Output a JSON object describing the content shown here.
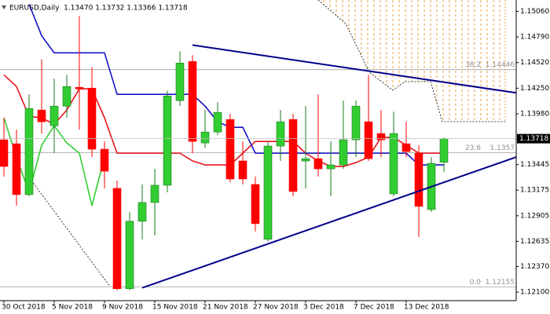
{
  "chart_data": {
    "type": "candlestick",
    "title": "EURUSD,Daily  1.13470 1.13732 1.13366 1.13718",
    "categories": [
      "30 Oct 2018",
      null,
      null,
      null,
      "5 Nov 2018",
      null,
      null,
      null,
      "9 Nov 2018",
      null,
      null,
      null,
      "15 Nov 2018",
      null,
      null,
      null,
      "21 Nov 2018",
      null,
      null,
      null,
      "27 Nov 2018",
      null,
      null,
      null,
      "3 Dec 2018",
      null,
      null,
      null,
      "7 Dec 2018",
      null,
      null,
      null,
      "13 Dec 2018",
      null,
      null,
      null
    ],
    "open": [
      1.13706,
      1.13664,
      1.13128,
      1.1402,
      1.13854,
      1.14061,
      1.14259,
      1.14251,
      1.13607,
      1.13194,
      1.12136,
      1.12847,
      1.13045,
      1.13227,
      1.14119,
      1.14532,
      1.13673,
      1.13788,
      1.1392,
      1.13483,
      1.13235,
      1.12657,
      1.1364,
      1.1392,
      1.13483,
      1.13507,
      1.134,
      1.13441,
      1.13706,
      1.13896,
      1.13772,
      1.13136,
      1.13664,
      1.13565,
      1.12971,
      1.1347
    ],
    "high": [
      1.13937,
      1.13813,
      1.14185,
      1.14556,
      1.1435,
      1.14391,
      1.15011,
      1.14474,
      1.13689,
      1.13276,
      1.12946,
      1.13235,
      1.134,
      1.14226,
      1.14639,
      1.14598,
      1.1402,
      1.14102,
      1.13978,
      1.13689,
      1.13318,
      1.13689,
      1.1402,
      1.13978,
      1.14061,
      1.14185,
      1.13689,
      1.14119,
      1.14119,
      1.14391,
      1.1402,
      1.14003,
      1.13896,
      1.13648,
      1.13524,
      1.13732
    ],
    "low": [
      1.13318,
      1.13012,
      1.13111,
      1.13772,
      1.13565,
      1.13937,
      1.13813,
      1.13524,
      1.13194,
      1.1212,
      1.1212,
      1.12657,
      1.12698,
      1.13152,
      1.14061,
      1.13565,
      1.13623,
      1.13755,
      1.1326,
      1.13235,
      1.12739,
      1.12632,
      1.13483,
      1.13111,
      1.13194,
      1.13318,
      1.13111,
      1.134,
      1.13524,
      1.13483,
      1.13524,
      1.13111,
      1.13524,
      1.12681,
      1.12946,
      1.13366
    ],
    "close": [
      1.13425,
      1.13128,
      1.14036,
      1.13896,
      1.14061,
      1.14267,
      1.14243,
      1.13607,
      1.13375,
      1.12136,
      1.12847,
      1.13045,
      1.13227,
      1.14168,
      1.14515,
      1.13689,
      1.13788,
      1.13995,
      1.13293,
      1.13293,
      1.12822,
      1.1364,
      1.13896,
      1.13161,
      1.13507,
      1.134,
      1.13441,
      1.13706,
      1.14061,
      1.13507,
      1.13706,
      1.13772,
      1.13582,
      1.13004,
      1.13458,
      1.13718
    ],
    "up_color": "#32cd32",
    "down_color": "#ff0000",
    "series": [
      {
        "color": "#e8141c",
        "values": [
          1.14391,
          1.14267,
          1.13954,
          1.13937,
          1.13871,
          1.1402,
          1.14243,
          1.14243,
          1.13937,
          1.13565,
          1.13565,
          1.13565,
          1.13565,
          1.13565,
          1.13565,
          1.13483,
          1.13441,
          1.13441,
          1.13441,
          1.13565,
          1.13689,
          1.13689,
          1.13689,
          1.13689,
          1.13565,
          1.13483,
          1.13425,
          1.13425,
          1.13466,
          1.13524,
          1.13731,
          1.13731,
          1.13648,
          1.13565,
          1.13565,
          1.13565
        ]
      },
      {
        "color": "#1414c8",
        "values": [
          null,
          null,
          1.15135,
          1.14804,
          1.14623,
          1.14623,
          1.14623,
          1.14623,
          1.14623,
          1.14185,
          1.14185,
          1.14185,
          1.14185,
          1.14185,
          1.14185,
          1.14185,
          1.14061,
          1.13896,
          1.13838,
          1.13838,
          1.13565,
          1.13565,
          1.13565,
          1.13565,
          1.13565,
          1.13565,
          1.13565,
          1.13565,
          1.13565,
          1.13565,
          1.13565,
          1.13565,
          1.13565,
          1.13441,
          1.13441,
          1.13441
        ]
      },
      {
        "color": "#32cd32",
        "values": [
          1.13937,
          1.13524,
          1.13152,
          1.13648,
          1.13854,
          1.13673,
          1.13565,
          1.13012,
          1.13524,
          null,
          null,
          null,
          null,
          null,
          null,
          null,
          null,
          null,
          null,
          null,
          null,
          null,
          null,
          null,
          null,
          null,
          null,
          null,
          null,
          null,
          null,
          null,
          null,
          null,
          null,
          null
        ]
      }
    ],
    "trendlines": [
      {
        "color": "#00008b",
        "points": [
          [
            15,
            1.14705
          ],
          [
            40.75,
            1.14201
          ]
        ]
      },
      {
        "color": "#00008b",
        "points": [
          [
            11,
            1.12145
          ],
          [
            40.75,
            1.13524
          ]
        ]
      }
    ],
    "fib_levels": [
      {
        "label": "38.2",
        "value": 1.14446
      },
      {
        "label": "23.6",
        "value": 1.1357
      },
      {
        "label": "0.0",
        "value": 1.12155
      }
    ],
    "ylim": [
      1.1201,
      1.1518
    ],
    "yticks": [
      {
        "value": 1.1506,
        "label": "1.15060"
      },
      {
        "value": 1.1479,
        "label": "1.14790"
      },
      {
        "value": 1.1452,
        "label": "1.14520"
      },
      {
        "value": 1.1425,
        "label": "1.14250"
      },
      {
        "value": 1.1398,
        "label": "1.13980"
      },
      {
        "value": 1.13445,
        "label": "1.13445"
      },
      {
        "value": 1.13175,
        "label": "1.13175"
      },
      {
        "value": 1.12905,
        "label": "1.12905"
      },
      {
        "value": 1.12635,
        "label": "1.12635"
      },
      {
        "value": 1.1237,
        "label": "1.12370"
      },
      {
        "value": 1.121,
        "label": "1.12100"
      }
    ]
  }
}
